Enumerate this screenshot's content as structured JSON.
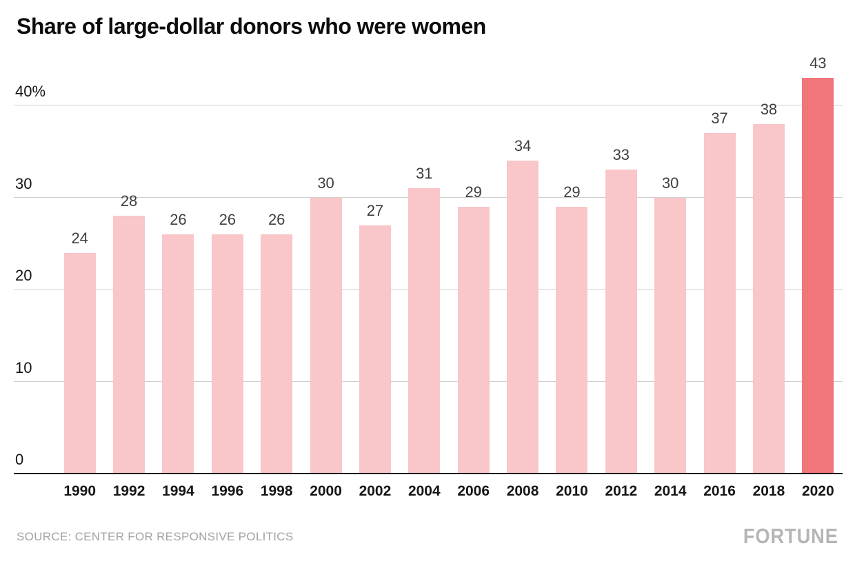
{
  "title": "Share of large-dollar donors who were women",
  "source": "SOURCE: CENTER FOR RESPONSIVE POLITICS",
  "brand": "FORTUNE",
  "colors": {
    "bar": "#f9c6c9",
    "bar_highlight": "#f0767b",
    "grid": "#cfcfcf",
    "axis": "#151515",
    "tick": "#141414",
    "label": "#3e3e3e",
    "source_text": "#a3a3a3",
    "brand_text": "#b5b5b5"
  },
  "chart_data": {
    "type": "bar",
    "title": "Share of large-dollar donors who were women",
    "categories": [
      "1990",
      "1992",
      "1994",
      "1996",
      "1998",
      "2000",
      "2002",
      "2004",
      "2006",
      "2008",
      "2010",
      "2012",
      "2014",
      "2016",
      "2018",
      "2020"
    ],
    "values": [
      24,
      28,
      26,
      26,
      26,
      30,
      27,
      31,
      29,
      34,
      29,
      33,
      30,
      37,
      38,
      43
    ],
    "highlight_category": "2020",
    "highlight_index": 15,
    "xlabel": "",
    "ylabel": "",
    "ylim": [
      0,
      44
    ],
    "yticks": [
      0,
      10,
      20,
      30,
      40
    ],
    "ytick_labels": [
      "0",
      "10",
      "20",
      "30",
      "40%"
    ],
    "grid": true,
    "legend_position": "none",
    "bar_labels_shown": true
  }
}
